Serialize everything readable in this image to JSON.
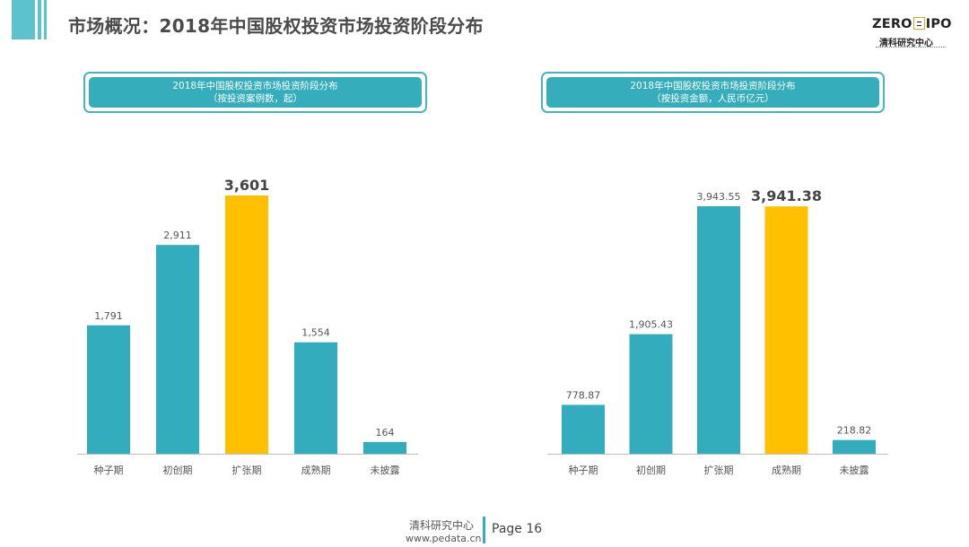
{
  "header": {
    "title": "市场概况：2018年中国股权投资市场投资阶段分布"
  },
  "logo": {
    "text_left": "ZERO",
    "text_right": "IPO",
    "cn": "清科研究中心"
  },
  "footer": {
    "org": "清科研究中心",
    "url": "www.pedata.cn",
    "page": "Page 16"
  },
  "colors": {
    "bar": "#33adbd",
    "highlight": "#ffc000",
    "title_box": "#36adbb"
  },
  "chart_data": [
    {
      "type": "bar",
      "title": "2018年中国股权投资市场投资阶段分布",
      "subtitle": "（按投资案例数，起）",
      "categories": [
        "种子期",
        "初创期",
        "扩张期",
        "成熟期",
        "未披露"
      ],
      "values": [
        1791,
        2911,
        3601,
        1554,
        164
      ],
      "labels": [
        "1,791",
        "2,911",
        "3,601",
        "1,554",
        "164"
      ],
      "highlight_index": 2,
      "ylim": [
        0,
        3601
      ]
    },
    {
      "type": "bar",
      "title": "2018年中国股权投资市场投资阶段分布",
      "subtitle": "（按投资金额，人民币亿元）",
      "categories": [
        "种子期",
        "初创期",
        "扩张期",
        "成熟期",
        "未披露"
      ],
      "values": [
        778.87,
        1905.43,
        3943.55,
        3941.38,
        218.82
      ],
      "labels": [
        "778.87",
        "1,905.43",
        "3,943.55",
        "3,941.38",
        "218.82"
      ],
      "highlight_index": 3,
      "ylim": [
        0,
        3943.55
      ]
    }
  ]
}
